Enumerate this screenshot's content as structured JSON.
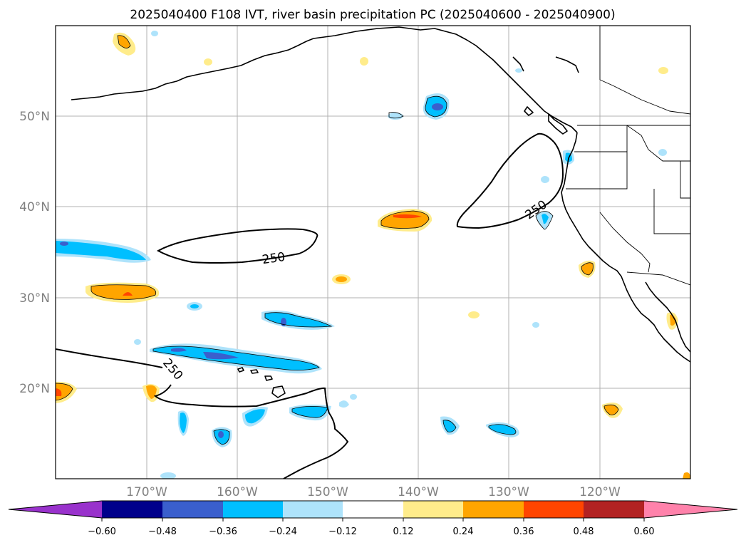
{
  "title": "2025040400 F108 IVT, river basin precipitation PC (2025040600 - 2025040900)",
  "map": {
    "lon_ticks": [
      "170°W",
      "160°W",
      "150°W",
      "140°W",
      "130°W",
      "120°W"
    ],
    "lat_ticks": [
      "20°N",
      "30°N",
      "40°N",
      "50°N"
    ],
    "contour_labels": [
      "250",
      "250",
      "250"
    ]
  },
  "colorbar": {
    "ticks": [
      "−0.60",
      "−0.48",
      "−0.36",
      "−0.24",
      "−0.12",
      "0.12",
      "0.24",
      "0.36",
      "0.48",
      "0.60"
    ],
    "colors": [
      "#9932cc",
      "#00008b",
      "#3a5fcd",
      "#00bfff",
      "#aee3fb",
      "#ffffff",
      "#ffec8b",
      "#ffa500",
      "#ff4500",
      "#b22222",
      "#ff82ab"
    ]
  }
}
